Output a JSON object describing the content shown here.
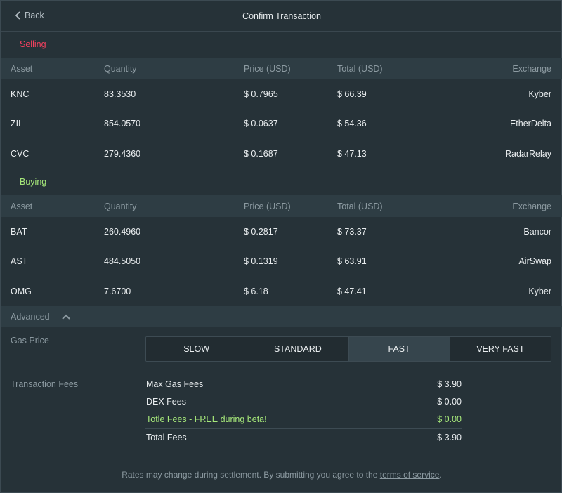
{
  "header": {
    "back_label": "Back",
    "title": "Confirm Transaction"
  },
  "selling": {
    "label": "Selling",
    "columns": [
      "Asset",
      "Quantity",
      "Price (USD)",
      "Total (USD)",
      "Exchange"
    ],
    "rows": [
      {
        "asset": "KNC",
        "quantity": "83.3530",
        "price": "$ 0.7965",
        "total": "$ 66.39",
        "exchange": "Kyber"
      },
      {
        "asset": "ZIL",
        "quantity": "854.0570",
        "price": "$ 0.0637",
        "total": "$ 54.36",
        "exchange": "EtherDelta"
      },
      {
        "asset": "CVC",
        "quantity": "279.4360",
        "price": "$ 0.1687",
        "total": "$ 47.13",
        "exchange": "RadarRelay"
      }
    ]
  },
  "buying": {
    "label": "Buying",
    "columns": [
      "Asset",
      "Quantity",
      "Price (USD)",
      "Total (USD)",
      "Exchange"
    ],
    "rows": [
      {
        "asset": "BAT",
        "quantity": "260.4960",
        "price": "$ 0.2817",
        "total": "$ 73.37",
        "exchange": "Bancor"
      },
      {
        "asset": "AST",
        "quantity": "484.5050",
        "price": "$ 0.1319",
        "total": "$ 63.91",
        "exchange": "AirSwap"
      },
      {
        "asset": "OMG",
        "quantity": "7.6700",
        "price": "$ 6.18",
        "total": "$ 47.41",
        "exchange": "Kyber"
      }
    ]
  },
  "advanced": {
    "label": "Advanced",
    "gas_price_label": "Gas Price",
    "gas_options": [
      "SLOW",
      "STANDARD",
      "FAST",
      "VERY FAST"
    ],
    "gas_selected": "FAST",
    "fees_label": "Transaction Fees",
    "fees": [
      {
        "name": "Max Gas Fees",
        "value": "$ 3.90"
      },
      {
        "name": "DEX Fees",
        "value": "$ 0.00"
      },
      {
        "name": "Totle Fees - FREE during beta!",
        "value": "$ 0.00"
      },
      {
        "name": "Total Fees",
        "value": "$ 3.90"
      }
    ]
  },
  "footer": {
    "text": "Rates may change during settlement. By submitting you agree to the",
    "link": "terms of service",
    "end": "."
  },
  "colors": {
    "selling": "#f2405e",
    "buying": "#a6e87a",
    "background": "#263238",
    "header_row": "#2e3d44"
  }
}
